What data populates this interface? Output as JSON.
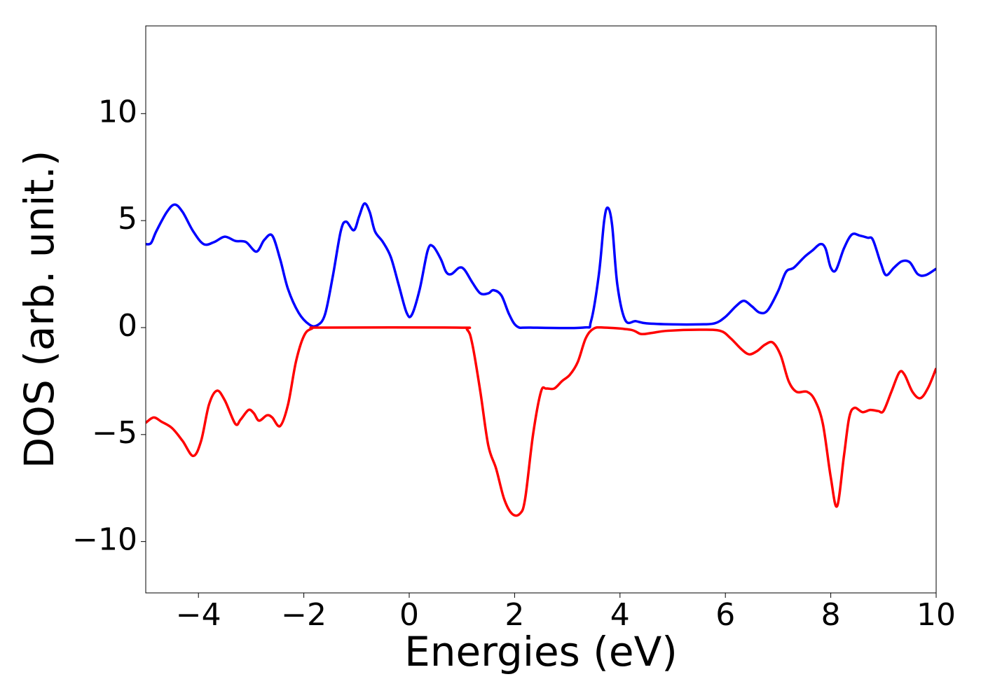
{
  "chart_data": {
    "type": "line",
    "xlabel": "Energies (eV)",
    "ylabel": "DOS (arb. unit.)",
    "xlim": [
      -5,
      10
    ],
    "ylim": [
      -12.4,
      14.1
    ],
    "xticks": [
      {
        "value": -4,
        "label": "−4"
      },
      {
        "value": -2,
        "label": "−2"
      },
      0,
      2,
      4,
      6,
      8,
      10
    ],
    "yticks": [
      {
        "value": -10,
        "label": "−10"
      },
      {
        "value": -5,
        "label": "−5"
      },
      0,
      5,
      10
    ],
    "series": [
      {
        "color": "#0000ff",
        "x": [
          -5,
          -4.9,
          -4.8,
          -4.6,
          -4.45,
          -4.3,
          -4.1,
          -3.9,
          -3.7,
          -3.5,
          -3.3,
          -3.1,
          -2.9,
          -2.75,
          -2.6,
          -2.45,
          -2.3,
          -2.1,
          -1.9,
          -1.75,
          -1.6,
          -1.45,
          -1.3,
          -1.2,
          -1.05,
          -0.95,
          -0.85,
          -0.75,
          -0.65,
          -0.5,
          -0.35,
          -0.2,
          -0.05,
          0.05,
          0.2,
          0.35,
          0.45,
          0.6,
          0.7,
          0.8,
          0.95,
          1.05,
          1.2,
          1.35,
          1.5,
          1.6,
          1.75,
          1.9,
          2.05,
          2.3,
          3.3,
          3.45,
          3.6,
          3.7,
          3.77,
          3.85,
          3.95,
          4.1,
          4.3,
          4.5,
          5,
          5.5,
          5.8,
          6,
          6.2,
          6.35,
          6.5,
          6.65,
          6.8,
          7,
          7.15,
          7.3,
          7.5,
          7.65,
          7.8,
          7.9,
          8,
          8.1,
          8.25,
          8.4,
          8.55,
          8.7,
          8.8,
          8.95,
          9.05,
          9.2,
          9.35,
          9.5,
          9.65,
          9.8,
          10
        ],
        "values": [
          3.9,
          3.95,
          4.5,
          5.4,
          5.75,
          5.4,
          4.5,
          3.9,
          4.0,
          4.25,
          4.05,
          4.0,
          3.55,
          4.1,
          4.3,
          3.2,
          1.8,
          0.7,
          0.15,
          0.1,
          0.6,
          2.4,
          4.5,
          4.95,
          4.55,
          5.2,
          5.8,
          5.4,
          4.5,
          4.0,
          3.3,
          2.0,
          0.7,
          0.6,
          1.8,
          3.6,
          3.8,
          3.2,
          2.6,
          2.5,
          2.8,
          2.7,
          2.1,
          1.6,
          1.6,
          1.75,
          1.5,
          0.6,
          0.05,
          0,
          0,
          0.3,
          2.5,
          5.0,
          5.6,
          4.8,
          2.0,
          0.35,
          0.3,
          0.2,
          0.15,
          0.15,
          0.2,
          0.5,
          1.0,
          1.25,
          1.0,
          0.7,
          0.8,
          1.7,
          2.6,
          2.8,
          3.3,
          3.6,
          3.9,
          3.7,
          2.8,
          2.7,
          3.7,
          4.35,
          4.3,
          4.2,
          4.1,
          3.0,
          2.45,
          2.8,
          3.1,
          3.05,
          2.5,
          2.45,
          2.75
        ]
      },
      {
        "color": "#ff0000",
        "x": [
          -5,
          -4.85,
          -4.7,
          -4.5,
          -4.3,
          -4.1,
          -3.95,
          -3.8,
          -3.65,
          -3.5,
          -3.3,
          -3.2,
          -3.05,
          -2.95,
          -2.85,
          -2.7,
          -2.6,
          -2.45,
          -2.3,
          -2.15,
          -2,
          -1.85,
          -1.6,
          0.9,
          1.1,
          1.2,
          1.35,
          1.5,
          1.65,
          1.8,
          1.95,
          2.1,
          2.2,
          2.35,
          2.5,
          2.6,
          2.75,
          2.9,
          3.05,
          3.2,
          3.35,
          3.5,
          3.7,
          4.2,
          4.4,
          4.6,
          4.9,
          5.5,
          5.9,
          6.1,
          6.3,
          6.45,
          6.6,
          6.75,
          6.9,
          7.05,
          7.2,
          7.35,
          7.55,
          7.7,
          7.85,
          8,
          8.12,
          8.25,
          8.35,
          8.45,
          8.6,
          8.75,
          8.9,
          9,
          9.15,
          9.3,
          9.4,
          9.55,
          9.7,
          9.85,
          10
        ],
        "values": [
          -4.45,
          -4.2,
          -4.4,
          -4.7,
          -5.3,
          -6.0,
          -5.3,
          -3.6,
          -2.95,
          -3.4,
          -4.5,
          -4.3,
          -3.85,
          -4.0,
          -4.35,
          -4.1,
          -4.2,
          -4.6,
          -3.6,
          -1.6,
          -0.4,
          -0.05,
          0,
          0,
          -0.1,
          -0.8,
          -3.0,
          -5.5,
          -6.6,
          -8.0,
          -8.7,
          -8.7,
          -8.0,
          -5.0,
          -3.0,
          -2.85,
          -2.85,
          -2.5,
          -2.2,
          -1.6,
          -0.5,
          -0.05,
          0,
          -0.1,
          -0.3,
          -0.25,
          -0.15,
          -0.1,
          -0.15,
          -0.5,
          -1.0,
          -1.25,
          -1.1,
          -0.8,
          -0.7,
          -1.3,
          -2.5,
          -3.0,
          -3.0,
          -3.4,
          -4.5,
          -7.0,
          -8.35,
          -6.0,
          -4.2,
          -3.75,
          -3.95,
          -3.85,
          -3.9,
          -3.9,
          -3.0,
          -2.1,
          -2.2,
          -3.0,
          -3.3,
          -2.8,
          -1.9
        ]
      }
    ]
  }
}
